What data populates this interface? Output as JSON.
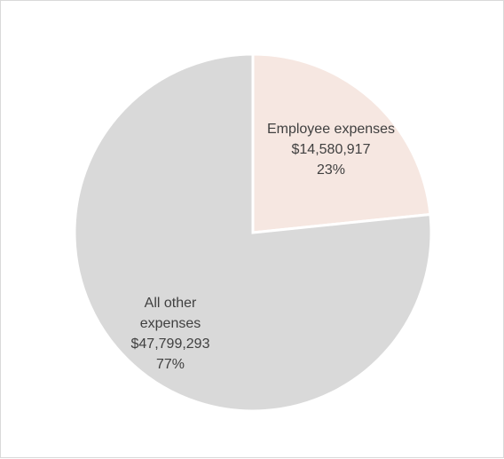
{
  "chart_data": {
    "type": "pie",
    "title": "",
    "slices": [
      {
        "name": "Employee expenses",
        "label_lines": [
          "Employee expenses",
          "$14,580,917",
          "23%"
        ],
        "value": 14580917,
        "percent": 23,
        "color": "#f6e7e1"
      },
      {
        "name": "All other expenses",
        "label_lines": [
          "All other",
          "expenses",
          "$47,799,293",
          "77%"
        ],
        "value": 47799293,
        "percent": 77,
        "color": "#d9d9d9"
      }
    ],
    "legend": "none"
  }
}
